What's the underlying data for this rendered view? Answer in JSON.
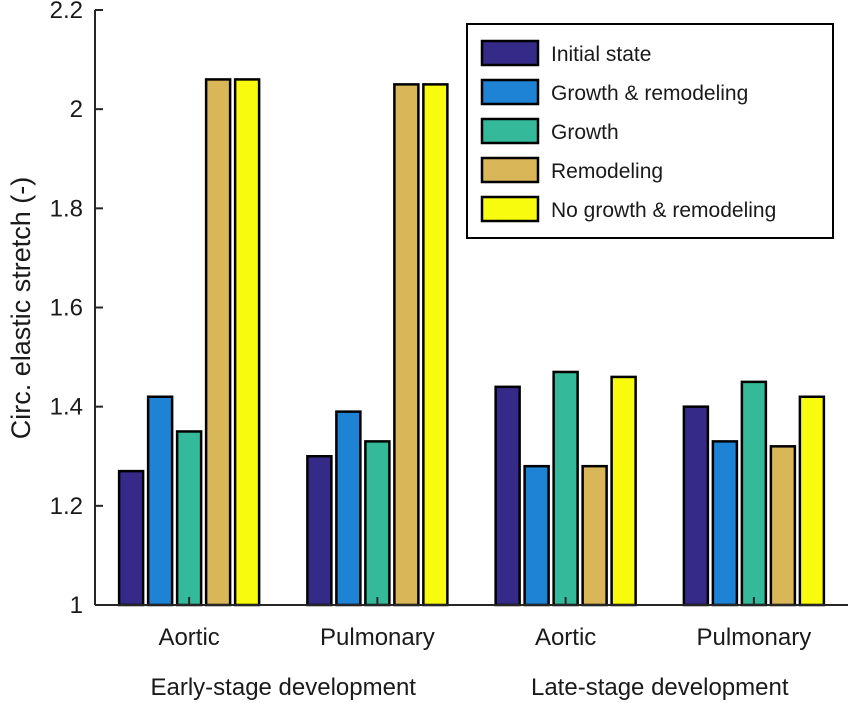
{
  "chart_data": {
    "type": "bar",
    "ylabel": "Circ. elastic stretch (-)",
    "xlabel": "",
    "ylim": [
      1,
      2.2
    ],
    "yticks": [
      1,
      1.2,
      1.4,
      1.6,
      1.8,
      2,
      2.2
    ],
    "ytick_labels": [
      "1",
      "1.2",
      "1.4",
      "1.6",
      "1.8",
      "2",
      "2.2"
    ],
    "categories": [
      "Aortic",
      "Pulmonary",
      "Aortic",
      "Pulmonary"
    ],
    "groups": [
      {
        "label": "Early-stage development",
        "categories": [
          0,
          1
        ]
      },
      {
        "label": "Late-stage development",
        "categories": [
          2,
          3
        ]
      }
    ],
    "series": [
      {
        "name": "Initial state",
        "color": "#352a87",
        "values": [
          1.27,
          1.3,
          1.44,
          1.4
        ]
      },
      {
        "name": "Growth & remodeling",
        "color": "#1e83d4",
        "values": [
          1.42,
          1.39,
          1.28,
          1.33
        ]
      },
      {
        "name": "Growth",
        "color": "#35b99b",
        "values": [
          1.35,
          1.33,
          1.47,
          1.45
        ]
      },
      {
        "name": "Remodeling",
        "color": "#d9b658",
        "values": [
          2.06,
          2.05,
          1.28,
          1.32
        ]
      },
      {
        "name": "No growth & remodeling",
        "color": "#f9fb0e",
        "values": [
          2.06,
          2.05,
          1.46,
          1.42
        ]
      }
    ],
    "grid": false,
    "legend_position": "top-right"
  }
}
